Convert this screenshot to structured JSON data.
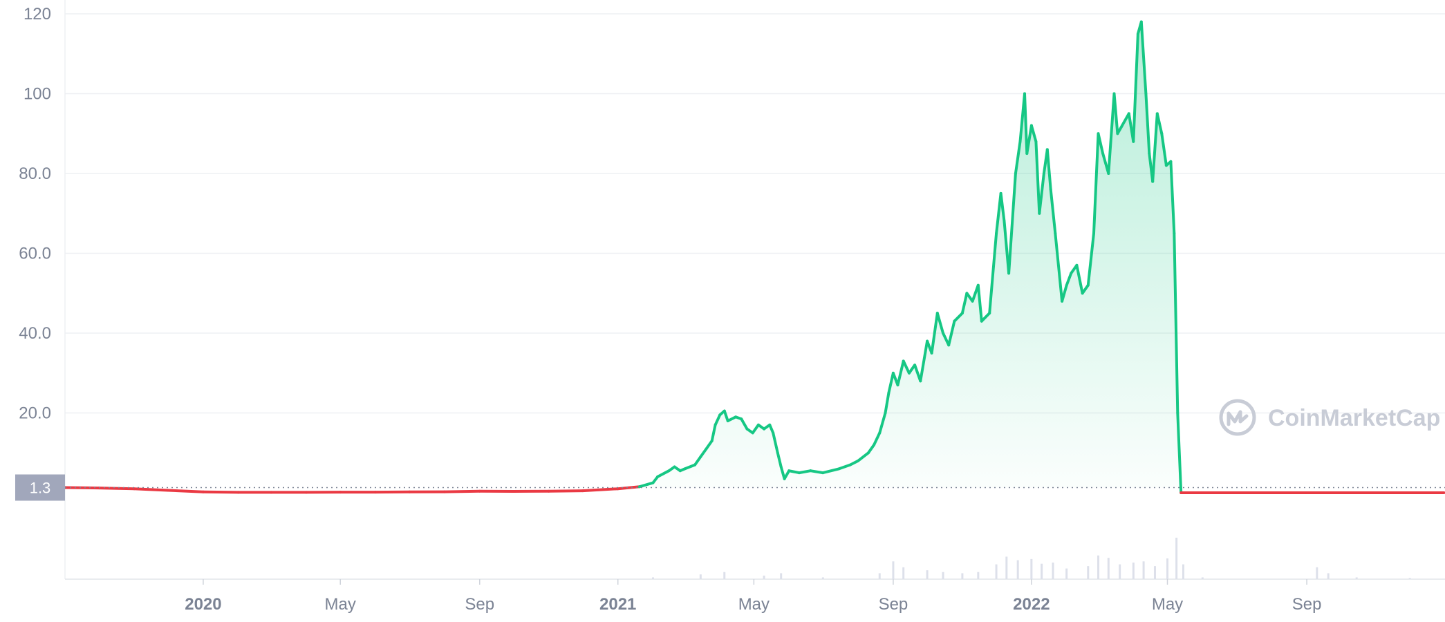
{
  "chart_data": {
    "type": "area",
    "y_axis": {
      "ticks": [
        "20.0",
        "40.0",
        "60.0",
        "80.0",
        "100",
        "120"
      ],
      "ylim": [
        0,
        120
      ]
    },
    "x_axis": {
      "ticks": [
        {
          "label": "2020",
          "date": "2020-01-01",
          "year": true
        },
        {
          "label": "May",
          "date": "2020-05-01",
          "year": false
        },
        {
          "label": "Sep",
          "date": "2020-09-01",
          "year": false
        },
        {
          "label": "2021",
          "date": "2021-01-01",
          "year": true
        },
        {
          "label": "May",
          "date": "2021-05-01",
          "year": false
        },
        {
          "label": "Sep",
          "date": "2021-09-01",
          "year": false
        },
        {
          "label": "2022",
          "date": "2022-01-01",
          "year": true
        },
        {
          "label": "May",
          "date": "2022-05-01",
          "year": false
        },
        {
          "label": "Sep",
          "date": "2022-09-01",
          "year": false
        }
      ],
      "xlim": [
        "2019-09-01",
        "2023-01-01"
      ]
    },
    "reference_line": {
      "value": 1.3,
      "label": "1.3"
    },
    "series": [
      {
        "values": [
          [
            "2019-09-01",
            1.3
          ],
          [
            "2019-10-01",
            1.2
          ],
          [
            "2019-11-01",
            1.0
          ],
          [
            "2019-12-01",
            0.6
          ],
          [
            "2020-01-01",
            0.2
          ],
          [
            "2020-02-01",
            0.1
          ],
          [
            "2020-03-01",
            0.1
          ],
          [
            "2020-04-01",
            0.1
          ],
          [
            "2020-05-01",
            0.15
          ],
          [
            "2020-06-01",
            0.15
          ],
          [
            "2020-07-01",
            0.2
          ],
          [
            "2020-08-01",
            0.25
          ],
          [
            "2020-09-01",
            0.4
          ],
          [
            "2020-10-01",
            0.35
          ],
          [
            "2020-11-01",
            0.4
          ],
          [
            "2020-12-01",
            0.5
          ],
          [
            "2021-01-01",
            1.0
          ],
          [
            "2021-01-20",
            1.5
          ],
          [
            "2021-02-01",
            2.5
          ],
          [
            "2021-02-05",
            4.0
          ],
          [
            "2021-02-15",
            5.5
          ],
          [
            "2021-02-20",
            6.5
          ],
          [
            "2021-02-25",
            5.5
          ],
          [
            "2021-03-01",
            6.0
          ],
          [
            "2021-03-10",
            7.0
          ],
          [
            "2021-03-15",
            9.0
          ],
          [
            "2021-03-20",
            11.0
          ],
          [
            "2021-03-25",
            13.0
          ],
          [
            "2021-03-28",
            17.0
          ],
          [
            "2021-04-01",
            19.5
          ],
          [
            "2021-04-05",
            20.5
          ],
          [
            "2021-04-08",
            18.0
          ],
          [
            "2021-04-15",
            19.0
          ],
          [
            "2021-04-20",
            18.5
          ],
          [
            "2021-04-25",
            16.0
          ],
          [
            "2021-04-30",
            15.0
          ],
          [
            "2021-05-05",
            17.0
          ],
          [
            "2021-05-10",
            16.0
          ],
          [
            "2021-05-15",
            17.0
          ],
          [
            "2021-05-18",
            15.0
          ],
          [
            "2021-05-22",
            10.0
          ],
          [
            "2021-05-25",
            6.5
          ],
          [
            "2021-05-28",
            3.5
          ],
          [
            "2021-06-01",
            5.5
          ],
          [
            "2021-06-10",
            5.0
          ],
          [
            "2021-06-20",
            5.5
          ],
          [
            "2021-07-01",
            5.0
          ],
          [
            "2021-07-15",
            6.0
          ],
          [
            "2021-07-25",
            7.0
          ],
          [
            "2021-08-01",
            8.0
          ],
          [
            "2021-08-10",
            10.0
          ],
          [
            "2021-08-15",
            12.0
          ],
          [
            "2021-08-20",
            15.0
          ],
          [
            "2021-08-25",
            20.0
          ],
          [
            "2021-08-28",
            25.0
          ],
          [
            "2021-09-01",
            30.0
          ],
          [
            "2021-09-05",
            27.0
          ],
          [
            "2021-09-10",
            33.0
          ],
          [
            "2021-09-15",
            30.0
          ],
          [
            "2021-09-20",
            32.0
          ],
          [
            "2021-09-25",
            28.0
          ],
          [
            "2021-10-01",
            38.0
          ],
          [
            "2021-10-05",
            35.0
          ],
          [
            "2021-10-10",
            45.0
          ],
          [
            "2021-10-15",
            40.0
          ],
          [
            "2021-10-20",
            37.0
          ],
          [
            "2021-10-25",
            43.0
          ],
          [
            "2021-11-01",
            45.0
          ],
          [
            "2021-11-05",
            50.0
          ],
          [
            "2021-11-10",
            48.0
          ],
          [
            "2021-11-15",
            52.0
          ],
          [
            "2021-11-18",
            43.0
          ],
          [
            "2021-11-25",
            45.0
          ],
          [
            "2021-12-01",
            65.0
          ],
          [
            "2021-12-05",
            75.0
          ],
          [
            "2021-12-08",
            68.0
          ],
          [
            "2021-12-12",
            55.0
          ],
          [
            "2021-12-18",
            80.0
          ],
          [
            "2021-12-22",
            88.0
          ],
          [
            "2021-12-26",
            100.0
          ],
          [
            "2021-12-28",
            85.0
          ],
          [
            "2022-01-01",
            92.0
          ],
          [
            "2022-01-05",
            88.0
          ],
          [
            "2022-01-08",
            70.0
          ],
          [
            "2022-01-12",
            80.0
          ],
          [
            "2022-01-15",
            86.0
          ],
          [
            "2022-01-18",
            76.0
          ],
          [
            "2022-01-22",
            65.0
          ],
          [
            "2022-01-28",
            48.0
          ],
          [
            "2022-02-01",
            52.0
          ],
          [
            "2022-02-05",
            55.0
          ],
          [
            "2022-02-10",
            57.0
          ],
          [
            "2022-02-15",
            50.0
          ],
          [
            "2022-02-20",
            52.0
          ],
          [
            "2022-02-25",
            65.0
          ],
          [
            "2022-03-01",
            90.0
          ],
          [
            "2022-03-05",
            85.0
          ],
          [
            "2022-03-10",
            80.0
          ],
          [
            "2022-03-15",
            100.0
          ],
          [
            "2022-03-18",
            90.0
          ],
          [
            "2022-03-22",
            92.0
          ],
          [
            "2022-03-28",
            95.0
          ],
          [
            "2022-04-01",
            88.0
          ],
          [
            "2022-04-05",
            115.0
          ],
          [
            "2022-04-08",
            118.0
          ],
          [
            "2022-04-12",
            100.0
          ],
          [
            "2022-04-15",
            85.0
          ],
          [
            "2022-04-18",
            78.0
          ],
          [
            "2022-04-22",
            95.0
          ],
          [
            "2022-04-26",
            90.0
          ],
          [
            "2022-04-30",
            82.0
          ],
          [
            "2022-05-04",
            83.0
          ],
          [
            "2022-05-07",
            65.0
          ],
          [
            "2022-05-10",
            20.0
          ],
          [
            "2022-05-13",
            0.0
          ],
          [
            "2022-06-01",
            0.0
          ],
          [
            "2022-09-01",
            0.0
          ],
          [
            "2022-12-31",
            0.0
          ]
        ]
      }
    ],
    "volume": [
      [
        "2021-02-01",
        3
      ],
      [
        "2021-03-15",
        8
      ],
      [
        "2021-04-05",
        12
      ],
      [
        "2021-05-10",
        6
      ],
      [
        "2021-05-25",
        10
      ],
      [
        "2021-07-01",
        3
      ],
      [
        "2021-08-20",
        10
      ],
      [
        "2021-09-01",
        30
      ],
      [
        "2021-09-10",
        20
      ],
      [
        "2021-10-01",
        15
      ],
      [
        "2021-10-15",
        12
      ],
      [
        "2021-11-01",
        10
      ],
      [
        "2021-11-15",
        12
      ],
      [
        "2021-12-01",
        25
      ],
      [
        "2021-12-10",
        38
      ],
      [
        "2021-12-20",
        32
      ],
      [
        "2022-01-01",
        34
      ],
      [
        "2022-01-10",
        26
      ],
      [
        "2022-01-20",
        28
      ],
      [
        "2022-02-01",
        18
      ],
      [
        "2022-02-20",
        22
      ],
      [
        "2022-03-01",
        40
      ],
      [
        "2022-03-10",
        36
      ],
      [
        "2022-03-20",
        25
      ],
      [
        "2022-04-01",
        28
      ],
      [
        "2022-04-10",
        30
      ],
      [
        "2022-04-20",
        22
      ],
      [
        "2022-05-01",
        35
      ],
      [
        "2022-05-09",
        70
      ],
      [
        "2022-05-15",
        25
      ],
      [
        "2022-06-01",
        3
      ],
      [
        "2022-09-10",
        20
      ],
      [
        "2022-09-20",
        10
      ],
      [
        "2022-10-15",
        3
      ],
      [
        "2022-12-01",
        2
      ]
    ],
    "watermark": "CoinMarketCap"
  }
}
